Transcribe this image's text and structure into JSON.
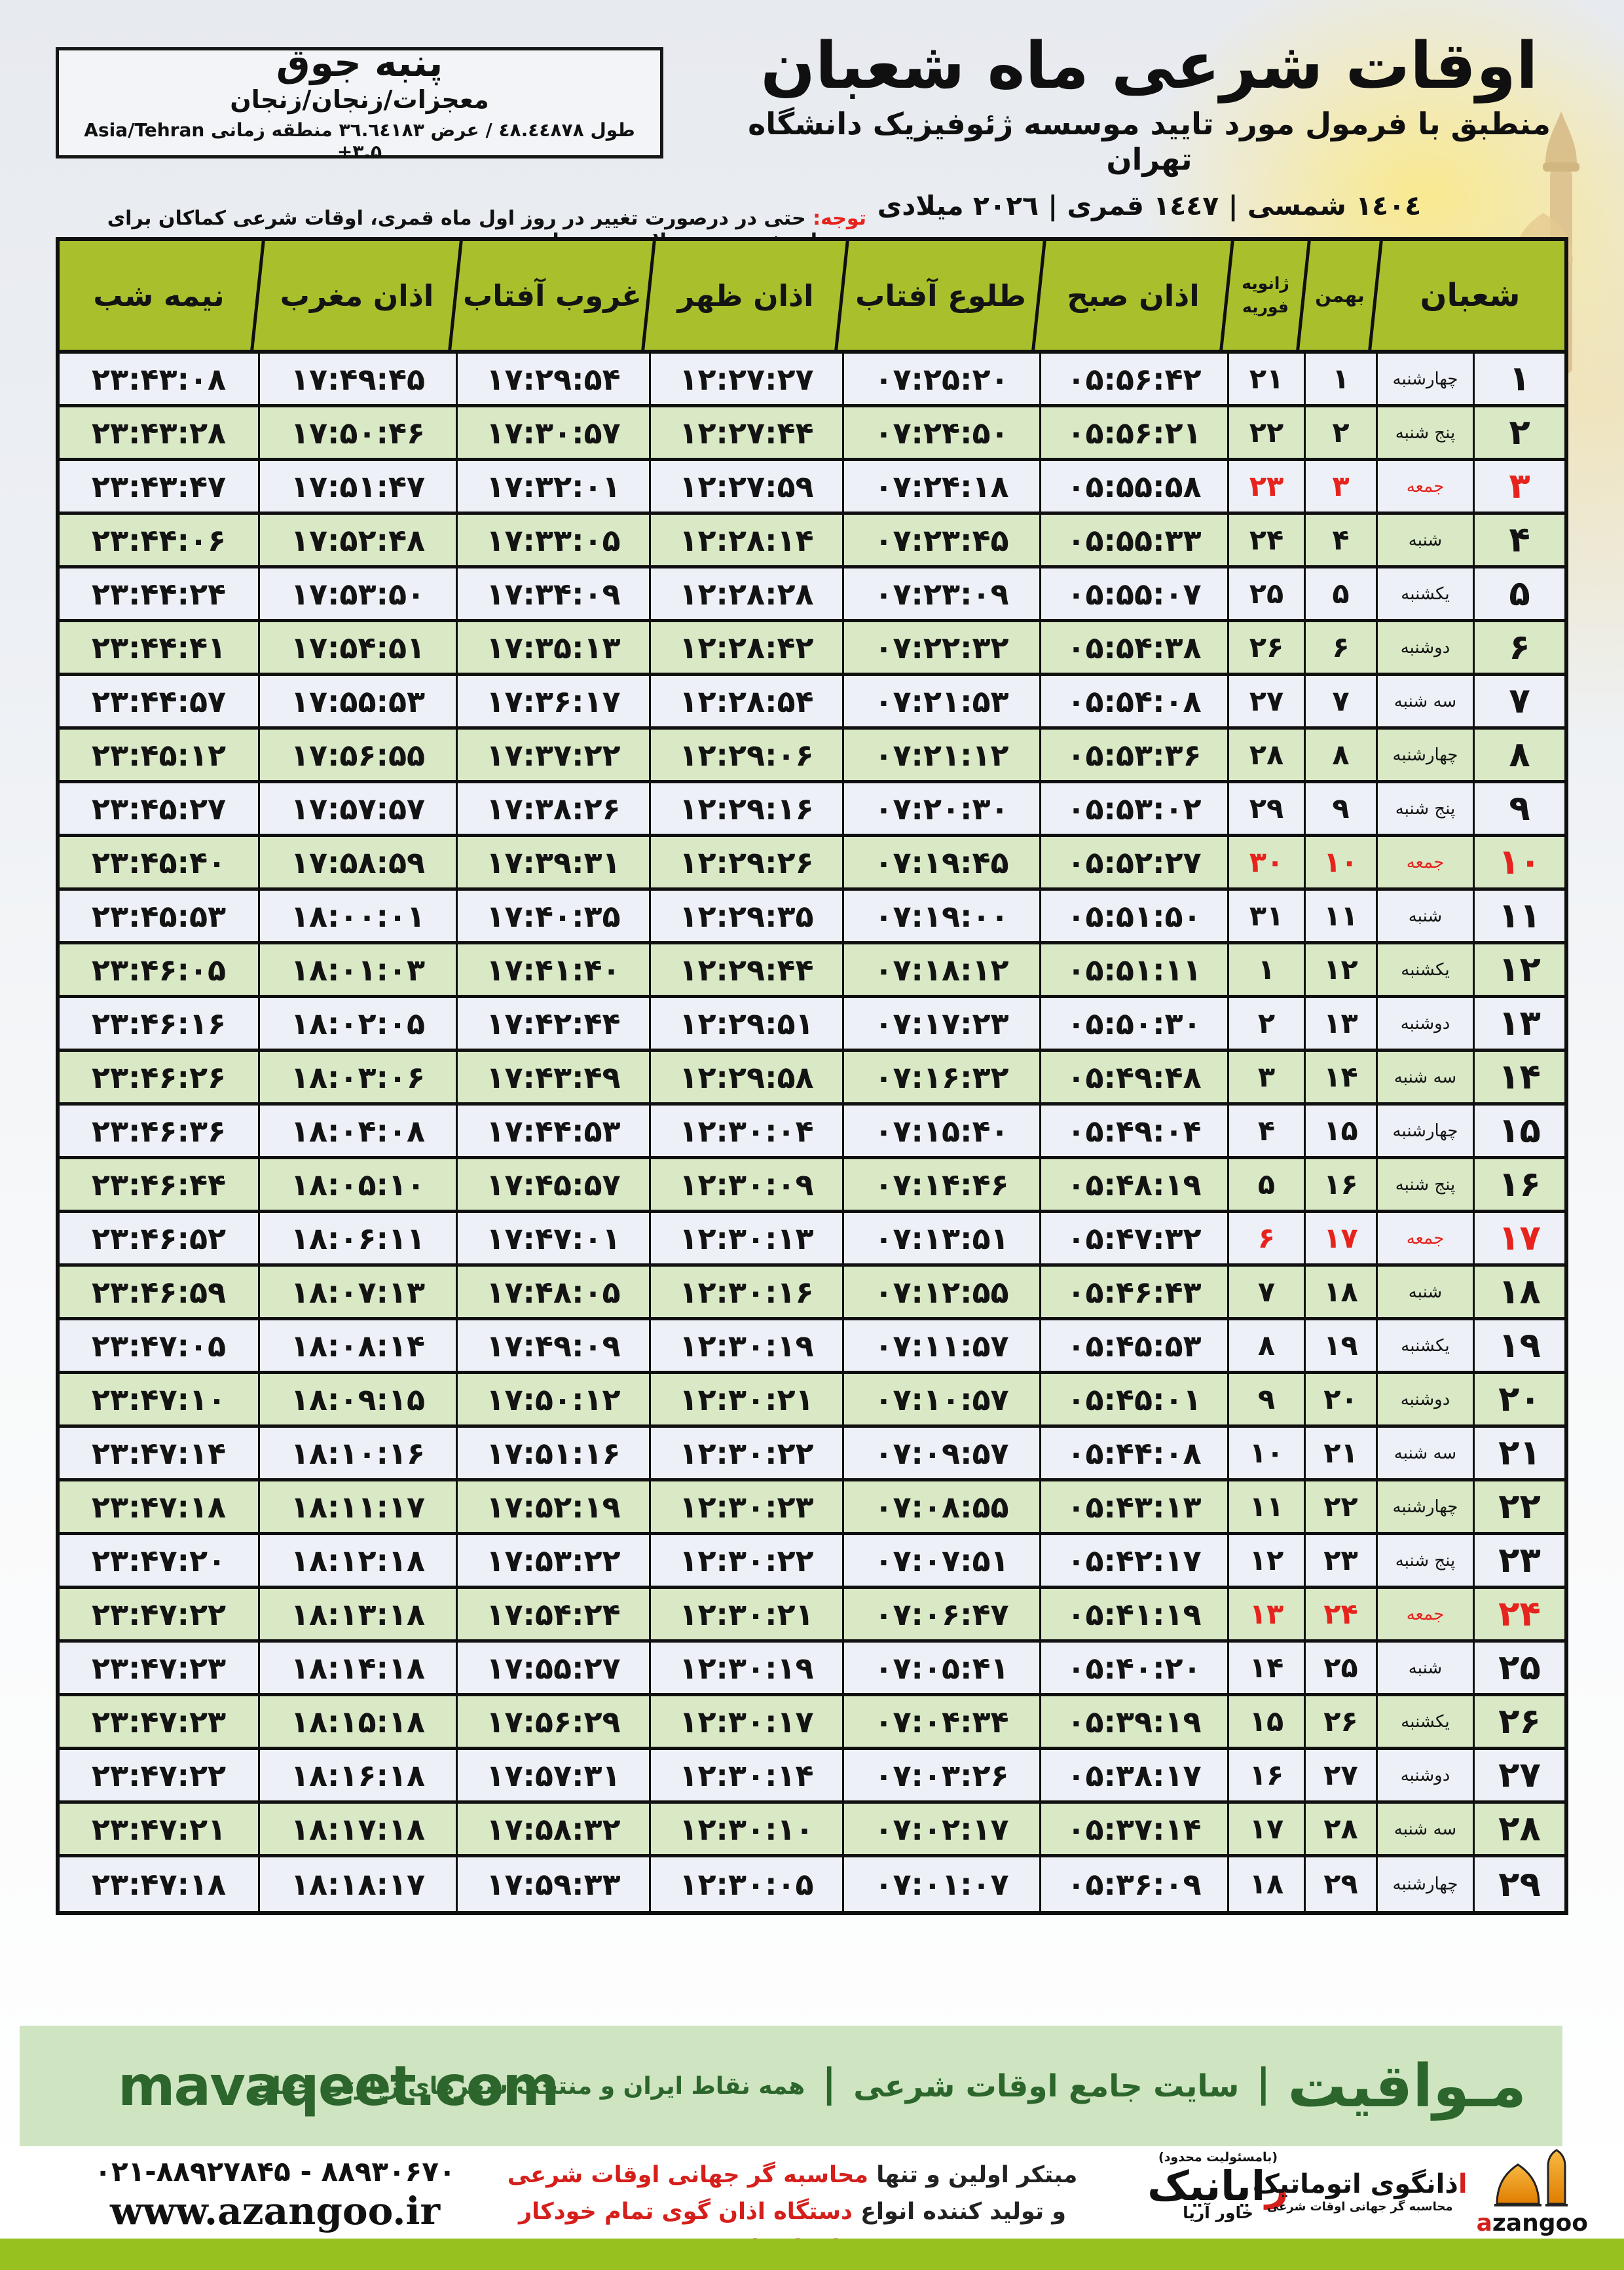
{
  "location_box": {
    "title": "پنبه جوق",
    "subtitle": "معجزات/زنجان/زنجان",
    "coords": "طول ٤٨.٤٤٨٧٨ / عرض ٣٦.٦٤١٨٣ منطقه زمانی",
    "timezone": "Asia/Tehran +۳.۵"
  },
  "header": {
    "title": "اوقات شرعی ماه شعبان",
    "subtitle": "منطبق با فرمول مورد تایید موسسه ژئوفیزیک دانشگاه تهران",
    "years": "١٤٠٤ شمسی | ١٤٤٧ قمری | ٢٠٢٦ میلادی"
  },
  "notice": {
    "label": "توجه:",
    "text": " حتی در درصورت تغییر در روز اول ماه قمری، اوقات شرعی کماکان برای روزهای شمسی و میلادی معتبر است."
  },
  "table": {
    "columns": {
      "shaban": "شعبان",
      "bahman": "بهمن",
      "jan": "ژانویه",
      "feb": "فوریه",
      "fajr": "اذان صبح",
      "sunrise": "طلوع آفتاب",
      "dhuhr": "اذان ظهر",
      "sunset": "غروب آفتاب",
      "maghrib": "اذان مغرب",
      "midnight": "نیمه شب"
    },
    "rows": [
      {
        "shaban": "۱",
        "weekday": "چهارشنبه",
        "bahman": "۱",
        "jan": "۲۱",
        "fajr": "۰۵:۵۶:۴۲",
        "sunrise": "۰۷:۲۵:۲۰",
        "dhuhr": "۱۲:۲۷:۲۷",
        "sunset": "۱۷:۲۹:۵۴",
        "maghrib": "۱۷:۴۹:۴۵",
        "midnight": "۲۳:۴۳:۰۸",
        "friday": false
      },
      {
        "shaban": "۲",
        "weekday": "پنج شنبه",
        "bahman": "۲",
        "jan": "۲۲",
        "fajr": "۰۵:۵۶:۲۱",
        "sunrise": "۰۷:۲۴:۵۰",
        "dhuhr": "۱۲:۲۷:۴۴",
        "sunset": "۱۷:۳۰:۵۷",
        "maghrib": "۱۷:۵۰:۴۶",
        "midnight": "۲۳:۴۳:۲۸",
        "friday": false
      },
      {
        "shaban": "۳",
        "weekday": "جمعه",
        "bahman": "۳",
        "jan": "۲۳",
        "fajr": "۰۵:۵۵:۵۸",
        "sunrise": "۰۷:۲۴:۱۸",
        "dhuhr": "۱۲:۲۷:۵۹",
        "sunset": "۱۷:۳۲:۰۱",
        "maghrib": "۱۷:۵۱:۴۷",
        "midnight": "۲۳:۴۳:۴۷",
        "friday": true
      },
      {
        "shaban": "۴",
        "weekday": "شنبه",
        "bahman": "۴",
        "jan": "۲۴",
        "fajr": "۰۵:۵۵:۳۳",
        "sunrise": "۰۷:۲۳:۴۵",
        "dhuhr": "۱۲:۲۸:۱۴",
        "sunset": "۱۷:۳۳:۰۵",
        "maghrib": "۱۷:۵۲:۴۸",
        "midnight": "۲۳:۴۴:۰۶",
        "friday": false
      },
      {
        "shaban": "۵",
        "weekday": "یکشنبه",
        "bahman": "۵",
        "jan": "۲۵",
        "fajr": "۰۵:۵۵:۰۷",
        "sunrise": "۰۷:۲۳:۰۹",
        "dhuhr": "۱۲:۲۸:۲۸",
        "sunset": "۱۷:۳۴:۰۹",
        "maghrib": "۱۷:۵۳:۵۰",
        "midnight": "۲۳:۴۴:۲۴",
        "friday": false
      },
      {
        "shaban": "۶",
        "weekday": "دوشنبه",
        "bahman": "۶",
        "jan": "۲۶",
        "fajr": "۰۵:۵۴:۳۸",
        "sunrise": "۰۷:۲۲:۳۲",
        "dhuhr": "۱۲:۲۸:۴۲",
        "sunset": "۱۷:۳۵:۱۳",
        "maghrib": "۱۷:۵۴:۵۱",
        "midnight": "۲۳:۴۴:۴۱",
        "friday": false
      },
      {
        "shaban": "۷",
        "weekday": "سه شنبه",
        "bahman": "۷",
        "jan": "۲۷",
        "fajr": "۰۵:۵۴:۰۸",
        "sunrise": "۰۷:۲۱:۵۳",
        "dhuhr": "۱۲:۲۸:۵۴",
        "sunset": "۱۷:۳۶:۱۷",
        "maghrib": "۱۷:۵۵:۵۳",
        "midnight": "۲۳:۴۴:۵۷",
        "friday": false
      },
      {
        "shaban": "۸",
        "weekday": "چهارشنبه",
        "bahman": "۸",
        "jan": "۲۸",
        "fajr": "۰۵:۵۳:۳۶",
        "sunrise": "۰۷:۲۱:۱۲",
        "dhuhr": "۱۲:۲۹:۰۶",
        "sunset": "۱۷:۳۷:۲۲",
        "maghrib": "۱۷:۵۶:۵۵",
        "midnight": "۲۳:۴۵:۱۲",
        "friday": false
      },
      {
        "shaban": "۹",
        "weekday": "پنج شنبه",
        "bahman": "۹",
        "jan": "۲۹",
        "fajr": "۰۵:۵۳:۰۲",
        "sunrise": "۰۷:۲۰:۳۰",
        "dhuhr": "۱۲:۲۹:۱۶",
        "sunset": "۱۷:۳۸:۲۶",
        "maghrib": "۱۷:۵۷:۵۷",
        "midnight": "۲۳:۴۵:۲۷",
        "friday": false
      },
      {
        "shaban": "۱۰",
        "weekday": "جمعه",
        "bahman": "۱۰",
        "jan": "۳۰",
        "fajr": "۰۵:۵۲:۲۷",
        "sunrise": "۰۷:۱۹:۴۵",
        "dhuhr": "۱۲:۲۹:۲۶",
        "sunset": "۱۷:۳۹:۳۱",
        "maghrib": "۱۷:۵۸:۵۹",
        "midnight": "۲۳:۴۵:۴۰",
        "friday": true
      },
      {
        "shaban": "۱۱",
        "weekday": "شنبه",
        "bahman": "۱۱",
        "jan": "۳۱",
        "fajr": "۰۵:۵۱:۵۰",
        "sunrise": "۰۷:۱۹:۰۰",
        "dhuhr": "۱۲:۲۹:۳۵",
        "sunset": "۱۷:۴۰:۳۵",
        "maghrib": "۱۸:۰۰:۰۱",
        "midnight": "۲۳:۴۵:۵۳",
        "friday": false
      },
      {
        "shaban": "۱۲",
        "weekday": "یکشنبه",
        "bahman": "۱۲",
        "jan": "۱",
        "fajr": "۰۵:۵۱:۱۱",
        "sunrise": "۰۷:۱۸:۱۲",
        "dhuhr": "۱۲:۲۹:۴۴",
        "sunset": "۱۷:۴۱:۴۰",
        "maghrib": "۱۸:۰۱:۰۳",
        "midnight": "۲۳:۴۶:۰۵",
        "friday": false
      },
      {
        "shaban": "۱۳",
        "weekday": "دوشنبه",
        "bahman": "۱۳",
        "jan": "۲",
        "fajr": "۰۵:۵۰:۳۰",
        "sunrise": "۰۷:۱۷:۲۳",
        "dhuhr": "۱۲:۲۹:۵۱",
        "sunset": "۱۷:۴۲:۴۴",
        "maghrib": "۱۸:۰۲:۰۵",
        "midnight": "۲۳:۴۶:۱۶",
        "friday": false
      },
      {
        "shaban": "۱۴",
        "weekday": "سه شنبه",
        "bahman": "۱۴",
        "jan": "۳",
        "fajr": "۰۵:۴۹:۴۸",
        "sunrise": "۰۷:۱۶:۳۲",
        "dhuhr": "۱۲:۲۹:۵۸",
        "sunset": "۱۷:۴۳:۴۹",
        "maghrib": "۱۸:۰۳:۰۶",
        "midnight": "۲۳:۴۶:۲۶",
        "friday": false
      },
      {
        "shaban": "۱۵",
        "weekday": "چهارشنبه",
        "bahman": "۱۵",
        "jan": "۴",
        "fajr": "۰۵:۴۹:۰۴",
        "sunrise": "۰۷:۱۵:۴۰",
        "dhuhr": "۱۲:۳۰:۰۴",
        "sunset": "۱۷:۴۴:۵۳",
        "maghrib": "۱۸:۰۴:۰۸",
        "midnight": "۲۳:۴۶:۳۶",
        "friday": false
      },
      {
        "shaban": "۱۶",
        "weekday": "پنج شنبه",
        "bahman": "۱۶",
        "jan": "۵",
        "fajr": "۰۵:۴۸:۱۹",
        "sunrise": "۰۷:۱۴:۴۶",
        "dhuhr": "۱۲:۳۰:۰۹",
        "sunset": "۱۷:۴۵:۵۷",
        "maghrib": "۱۸:۰۵:۱۰",
        "midnight": "۲۳:۴۶:۴۴",
        "friday": false
      },
      {
        "shaban": "۱۷",
        "weekday": "جمعه",
        "bahman": "۱۷",
        "jan": "۶",
        "fajr": "۰۵:۴۷:۳۲",
        "sunrise": "۰۷:۱۳:۵۱",
        "dhuhr": "۱۲:۳۰:۱۳",
        "sunset": "۱۷:۴۷:۰۱",
        "maghrib": "۱۸:۰۶:۱۱",
        "midnight": "۲۳:۴۶:۵۲",
        "friday": true
      },
      {
        "shaban": "۱۸",
        "weekday": "شنبه",
        "bahman": "۱۸",
        "jan": "۷",
        "fajr": "۰۵:۴۶:۴۳",
        "sunrise": "۰۷:۱۲:۵۵",
        "dhuhr": "۱۲:۳۰:۱۶",
        "sunset": "۱۷:۴۸:۰۵",
        "maghrib": "۱۸:۰۷:۱۳",
        "midnight": "۲۳:۴۶:۵۹",
        "friday": false
      },
      {
        "shaban": "۱۹",
        "weekday": "یکشنبه",
        "bahman": "۱۹",
        "jan": "۸",
        "fajr": "۰۵:۴۵:۵۳",
        "sunrise": "۰۷:۱۱:۵۷",
        "dhuhr": "۱۲:۳۰:۱۹",
        "sunset": "۱۷:۴۹:۰۹",
        "maghrib": "۱۸:۰۸:۱۴",
        "midnight": "۲۳:۴۷:۰۵",
        "friday": false
      },
      {
        "shaban": "۲۰",
        "weekday": "دوشنبه",
        "bahman": "۲۰",
        "jan": "۹",
        "fajr": "۰۵:۴۵:۰۱",
        "sunrise": "۰۷:۱۰:۵۷",
        "dhuhr": "۱۲:۳۰:۲۱",
        "sunset": "۱۷:۵۰:۱۲",
        "maghrib": "۱۸:۰۹:۱۵",
        "midnight": "۲۳:۴۷:۱۰",
        "friday": false
      },
      {
        "shaban": "۲۱",
        "weekday": "سه شنبه",
        "bahman": "۲۱",
        "jan": "۱۰",
        "fajr": "۰۵:۴۴:۰۸",
        "sunrise": "۰۷:۰۹:۵۷",
        "dhuhr": "۱۲:۳۰:۲۲",
        "sunset": "۱۷:۵۱:۱۶",
        "maghrib": "۱۸:۱۰:۱۶",
        "midnight": "۲۳:۴۷:۱۴",
        "friday": false
      },
      {
        "shaban": "۲۲",
        "weekday": "چهارشنبه",
        "bahman": "۲۲",
        "jan": "۱۱",
        "fajr": "۰۵:۴۳:۱۳",
        "sunrise": "۰۷:۰۸:۵۵",
        "dhuhr": "۱۲:۳۰:۲۳",
        "sunset": "۱۷:۵۲:۱۹",
        "maghrib": "۱۸:۱۱:۱۷",
        "midnight": "۲۳:۴۷:۱۸",
        "friday": false
      },
      {
        "shaban": "۲۳",
        "weekday": "پنج شنبه",
        "bahman": "۲۳",
        "jan": "۱۲",
        "fajr": "۰۵:۴۲:۱۷",
        "sunrise": "۰۷:۰۷:۵۱",
        "dhuhr": "۱۲:۳۰:۲۲",
        "sunset": "۱۷:۵۳:۲۲",
        "maghrib": "۱۸:۱۲:۱۸",
        "midnight": "۲۳:۴۷:۲۰",
        "friday": false
      },
      {
        "shaban": "۲۴",
        "weekday": "جمعه",
        "bahman": "۲۴",
        "jan": "۱۳",
        "fajr": "۰۵:۴۱:۱۹",
        "sunrise": "۰۷:۰۶:۴۷",
        "dhuhr": "۱۲:۳۰:۲۱",
        "sunset": "۱۷:۵۴:۲۴",
        "maghrib": "۱۸:۱۳:۱۸",
        "midnight": "۲۳:۴۷:۲۲",
        "friday": true
      },
      {
        "shaban": "۲۵",
        "weekday": "شنبه",
        "bahman": "۲۵",
        "jan": "۱۴",
        "fajr": "۰۵:۴۰:۲۰",
        "sunrise": "۰۷:۰۵:۴۱",
        "dhuhr": "۱۲:۳۰:۱۹",
        "sunset": "۱۷:۵۵:۲۷",
        "maghrib": "۱۸:۱۴:۱۸",
        "midnight": "۲۳:۴۷:۲۳",
        "friday": false
      },
      {
        "shaban": "۲۶",
        "weekday": "یکشنبه",
        "bahman": "۲۶",
        "jan": "۱۵",
        "fajr": "۰۵:۳۹:۱۹",
        "sunrise": "۰۷:۰۴:۳۴",
        "dhuhr": "۱۲:۳۰:۱۷",
        "sunset": "۱۷:۵۶:۲۹",
        "maghrib": "۱۸:۱۵:۱۸",
        "midnight": "۲۳:۴۷:۲۳",
        "friday": false
      },
      {
        "shaban": "۲۷",
        "weekday": "دوشنبه",
        "bahman": "۲۷",
        "jan": "۱۶",
        "fajr": "۰۵:۳۸:۱۷",
        "sunrise": "۰۷:۰۳:۲۶",
        "dhuhr": "۱۲:۳۰:۱۴",
        "sunset": "۱۷:۵۷:۳۱",
        "maghrib": "۱۸:۱۶:۱۸",
        "midnight": "۲۳:۴۷:۲۲",
        "friday": false
      },
      {
        "shaban": "۲۸",
        "weekday": "سه شنبه",
        "bahman": "۲۸",
        "jan": "۱۷",
        "fajr": "۰۵:۳۷:۱۴",
        "sunrise": "۰۷:۰۲:۱۷",
        "dhuhr": "۱۲:۳۰:۱۰",
        "sunset": "۱۷:۵۸:۳۲",
        "maghrib": "۱۸:۱۷:۱۸",
        "midnight": "۲۳:۴۷:۲۱",
        "friday": false
      },
      {
        "shaban": "۲۹",
        "weekday": "چهارشنبه",
        "bahman": "۲۹",
        "jan": "۱۸",
        "fajr": "۰۵:۳۶:۰۹",
        "sunrise": "۰۷:۰۱:۰۷",
        "dhuhr": "۱۲:۳۰:۰۵",
        "sunset": "۱۷:۵۹:۳۳",
        "maghrib": "۱۸:۱۸:۱۷",
        "midnight": "۲۳:۴۷:۱۸",
        "friday": false
      }
    ]
  },
  "footer": {
    "site_url": "mavaqeet.com",
    "brand": "مـواقیت",
    "pipe": "|",
    "tagline1": "سایت جامع اوقات شرعی",
    "tagline2": "همه نقاط ایران و منتخب شهرهای زیارتی جهان",
    "phone": "۰۲۱-۸۸۹۲۷۸۴۵ - ۸۸۹۳۰۶۷۰",
    "website": "www.azangoo.ir",
    "promo_line1_black": "مبتکر اولین و تنها ",
    "promo_line1_red": "محاسبه گر جهانی اوقات شرعی",
    "promo_line2_black": "و تولید کننده انواع ",
    "promo_line2_red": "دستگاه اذان گوی تمام خودکار ماهواره ای",
    "rayanik_note": "(بامسئولیت محدود)",
    "rayanik_name_red": "ر",
    "rayanik_name": "ایانیک",
    "rayanik_sub": "خاور آریا",
    "azangoo_fa_red": "ا",
    "azangoo_fa": "ذانگوی اتوماتیک",
    "azangoo_tagline": "محاسبه گر جهانی اوقات شرعی",
    "azangoo_wordmark_red": "a",
    "azangoo_wordmark": "zangoo"
  },
  "colors": {
    "header_green": "#a9c02c",
    "row_green": "#d9e8c5",
    "row_light": "#edf1f7",
    "friday_red": "#e6231d",
    "footer_bar_green": "#cfe5c1",
    "footer_text_green": "#2c662c",
    "bottom_bar_green": "#96c11f",
    "azangoo_orange": "#f0930f"
  }
}
